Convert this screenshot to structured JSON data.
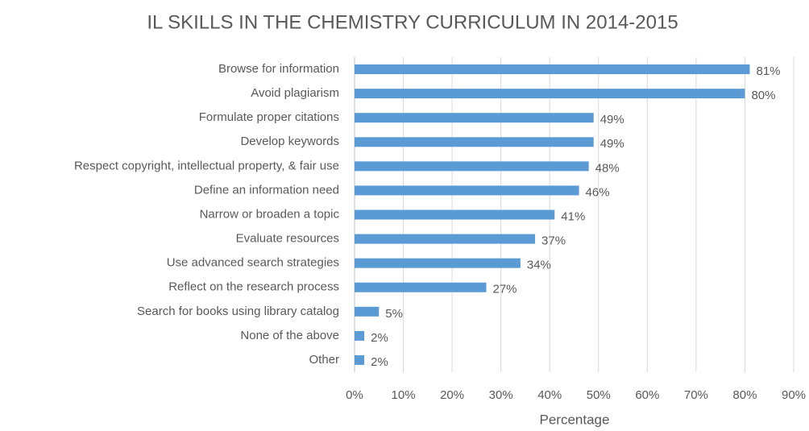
{
  "chart_data": {
    "type": "bar",
    "orientation": "horizontal",
    "title": "IL SKILLS IN THE CHEMISTRY CURRICULUM IN 2014-2015",
    "x_label": "Percentage",
    "categories": [
      "Browse for information",
      "Avoid plagiarism",
      "Formulate proper citations",
      "Develop keywords",
      "Respect copyright, intellectual property, & fair use",
      "Define an information need",
      "Narrow or broaden a topic",
      "Evaluate resources",
      "Use advanced search strategies",
      "Reflect on the research process",
      "Search for books using library catalog",
      "None of the above",
      "Other"
    ],
    "values": [
      81,
      80,
      49,
      49,
      48,
      46,
      41,
      37,
      34,
      27,
      5,
      2,
      2
    ],
    "value_labels": [
      "81%",
      "80%",
      "49%",
      "49%",
      "48%",
      "46%",
      "41%",
      "37%",
      "34%",
      "27%",
      "5%",
      "2%",
      "2%"
    ],
    "color": "#5b9bd5",
    "xlim": [
      0,
      90
    ],
    "xticks": [
      {
        "value": 0,
        "label": "0%"
      },
      {
        "value": 10,
        "label": "10%"
      },
      {
        "value": 20,
        "label": "20%"
      },
      {
        "value": 30,
        "label": "30%"
      },
      {
        "value": 40,
        "label": "40%"
      },
      {
        "value": 50,
        "label": "50%"
      },
      {
        "value": 60,
        "label": "60%"
      },
      {
        "value": 70,
        "label": "70%"
      },
      {
        "value": 80,
        "label": "80%"
      },
      {
        "value": 90,
        "label": "90%"
      }
    ],
    "grid": true
  }
}
